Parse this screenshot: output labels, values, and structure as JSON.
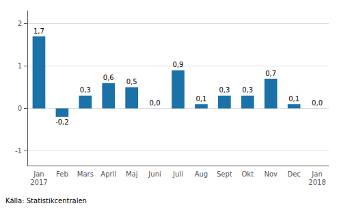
{
  "chart_data": {
    "type": "bar",
    "categories": [
      "Jan\n2017",
      "Feb",
      "Mars",
      "April",
      "Maj",
      "Juni",
      "Juli",
      "Aug",
      "Sept",
      "Okt",
      "Nov",
      "Dec",
      "Jan\n2018"
    ],
    "values": [
      1.7,
      -0.2,
      0.3,
      0.6,
      0.5,
      0.0,
      0.9,
      0.1,
      0.3,
      0.3,
      0.7,
      0.1,
      0.0
    ],
    "value_labels": [
      "1,7",
      "-0,2",
      "0,3",
      "0,6",
      "0,5",
      "0,0",
      "0,9",
      "0,1",
      "0,3",
      "0,3",
      "0,7",
      "0,1",
      "0,0"
    ],
    "data_labels": true,
    "color": "#1a72a8",
    "ylim": [
      -1.35,
      2.3
    ],
    "yticks": [
      -1,
      0,
      1,
      2
    ],
    "grid": true,
    "annotation": "Källa: Statistikcentralen"
  }
}
